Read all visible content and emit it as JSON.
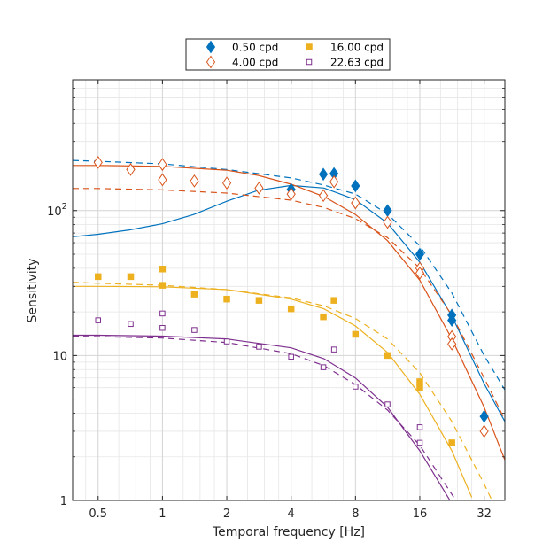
{
  "chart_data": {
    "type": "scatter",
    "title": "",
    "xlabel": "Temporal frequency [Hz]",
    "ylabel": "Sensitivity",
    "xscale": "log2",
    "yscale": "log10",
    "xlim": [
      0.38,
      40
    ],
    "ylim": [
      1,
      800
    ],
    "grid": true,
    "legend_position": "top-center",
    "x_ticks": [
      {
        "value": 0.5,
        "label": "0.5"
      },
      {
        "value": 1,
        "label": "1"
      },
      {
        "value": 2,
        "label": "2"
      },
      {
        "value": 4,
        "label": "4"
      },
      {
        "value": 8,
        "label": "8"
      },
      {
        "value": 16,
        "label": "16"
      },
      {
        "value": 32,
        "label": "32"
      }
    ],
    "y_ticks": [
      {
        "value": 1,
        "base": "1",
        "exp": ""
      },
      {
        "value": 10,
        "base": "10",
        "exp": ""
      },
      {
        "value": 100,
        "base": "10",
        "exp": "2"
      }
    ],
    "series": [
      {
        "name": "0.50 cpd",
        "color": "#0072BD",
        "marker": "diamond-filled",
        "points": [
          [
            4,
            140
          ],
          [
            5.66,
            178
          ],
          [
            6.35,
            180
          ],
          [
            8,
            148
          ],
          [
            11.3,
            100
          ],
          [
            16,
            50
          ],
          [
            22.6,
            19
          ],
          [
            22.6,
            17.5
          ],
          [
            32,
            3.8
          ]
        ],
        "fit_solid": [
          [
            0.38,
            66
          ],
          [
            0.5,
            68.6
          ],
          [
            0.7,
            73.5
          ],
          [
            1,
            81.2
          ],
          [
            1.4,
            94
          ],
          [
            2,
            116
          ],
          [
            2.8,
            138
          ],
          [
            4,
            149
          ],
          [
            5.7,
            143
          ],
          [
            8,
            119
          ],
          [
            11.3,
            82
          ],
          [
            16,
            44
          ],
          [
            22.6,
            18.7
          ],
          [
            32,
            6.4
          ],
          [
            40,
            3.5
          ]
        ],
        "fit_dashed": [
          [
            0.38,
            222
          ],
          [
            0.5,
            219
          ],
          [
            1,
            210
          ],
          [
            2,
            192
          ],
          [
            4,
            168
          ],
          [
            5.7,
            150
          ],
          [
            8,
            130
          ],
          [
            11.3,
            95
          ],
          [
            16,
            57
          ],
          [
            22.6,
            27
          ],
          [
            32,
            10
          ],
          [
            40,
            5.8
          ]
        ]
      },
      {
        "name": "4.00 cpd",
        "color": "#D95319",
        "marker": "diamond-open",
        "points": [
          [
            0.5,
            215
          ],
          [
            0.71,
            192
          ],
          [
            1,
            208
          ],
          [
            1,
            163
          ],
          [
            1.41,
            160
          ],
          [
            2,
            155
          ],
          [
            2.83,
            143
          ],
          [
            4,
            130
          ],
          [
            5.66,
            127
          ],
          [
            6.35,
            158
          ],
          [
            8,
            113
          ],
          [
            11.3,
            83
          ],
          [
            16,
            40
          ],
          [
            16,
            37
          ],
          [
            22.6,
            13.5
          ],
          [
            22.6,
            12
          ],
          [
            32,
            3
          ]
        ],
        "fit_solid": [
          [
            0.38,
            205
          ],
          [
            0.5,
            205
          ],
          [
            1,
            202
          ],
          [
            2,
            190
          ],
          [
            2.8,
            175
          ],
          [
            4,
            152
          ],
          [
            5.7,
            125
          ],
          [
            8,
            94
          ],
          [
            11.3,
            62
          ],
          [
            16,
            33
          ],
          [
            22.6,
            13
          ],
          [
            32,
            4.4
          ],
          [
            40,
            1.9
          ]
        ],
        "fit_dashed": [
          [
            0.38,
            142
          ],
          [
            0.5,
            142
          ],
          [
            1,
            139
          ],
          [
            2,
            132
          ],
          [
            4,
            118
          ],
          [
            5.7,
            105
          ],
          [
            8,
            88
          ],
          [
            11.3,
            65
          ],
          [
            16,
            40
          ],
          [
            22.6,
            19
          ],
          [
            32,
            7
          ],
          [
            40,
            3.6
          ]
        ]
      },
      {
        "name": "16.00 cpd",
        "color": "#EDB120",
        "marker": "square-filled",
        "points": [
          [
            0.5,
            35
          ],
          [
            0.71,
            35
          ],
          [
            1,
            39.5
          ],
          [
            1,
            30.5
          ],
          [
            1.41,
            26.5
          ],
          [
            2,
            24.5
          ],
          [
            2.83,
            24
          ],
          [
            4,
            21
          ],
          [
            5.66,
            18.5
          ],
          [
            6.35,
            24
          ],
          [
            8,
            14
          ],
          [
            11.3,
            10
          ],
          [
            16,
            6.6
          ],
          [
            16,
            6
          ],
          [
            22.6,
            2.5
          ]
        ],
        "fit_solid": [
          [
            0.38,
            30
          ],
          [
            0.5,
            30
          ],
          [
            1,
            29.8
          ],
          [
            2,
            28.5
          ],
          [
            4,
            24.5
          ],
          [
            5.7,
            21
          ],
          [
            8,
            16
          ],
          [
            11.3,
            10.5
          ],
          [
            16,
            5.4
          ],
          [
            22.6,
            2.2
          ],
          [
            28,
            1.05
          ]
        ],
        "fit_dashed": [
          [
            0.38,
            32
          ],
          [
            0.5,
            31.5
          ],
          [
            1,
            30.5
          ],
          [
            2,
            28.5
          ],
          [
            4,
            25
          ],
          [
            5.7,
            22
          ],
          [
            8,
            18
          ],
          [
            11.3,
            13
          ],
          [
            16,
            7.6
          ],
          [
            22.6,
            3.5
          ],
          [
            32,
            1.3
          ],
          [
            36,
            0.9
          ]
        ]
      },
      {
        "name": "22.63 cpd",
        "color": "#7E2F8E",
        "marker": "square-open",
        "points": [
          [
            0.5,
            17.5
          ],
          [
            0.71,
            16.5
          ],
          [
            1,
            19.5
          ],
          [
            1,
            15.5
          ],
          [
            1.41,
            15
          ],
          [
            2,
            12.5
          ],
          [
            2.83,
            11.5
          ],
          [
            4,
            9.8
          ],
          [
            5.66,
            8.3
          ],
          [
            6.35,
            11
          ],
          [
            8,
            6.1
          ],
          [
            11.3,
            4.6
          ],
          [
            16,
            3.2
          ],
          [
            16,
            2.5
          ]
        ],
        "fit_solid": [
          [
            0.38,
            13.8
          ],
          [
            0.5,
            13.8
          ],
          [
            1,
            13.6
          ],
          [
            2,
            13
          ],
          [
            4,
            11.3
          ],
          [
            5.7,
            9.5
          ],
          [
            8,
            7
          ],
          [
            11.3,
            4.4
          ],
          [
            16,
            2.2
          ],
          [
            22.6,
            0.95
          ],
          [
            24,
            0.8
          ]
        ],
        "fit_dashed": [
          [
            0.38,
            13.6
          ],
          [
            0.5,
            13.5
          ],
          [
            1,
            13.2
          ],
          [
            2,
            12.3
          ],
          [
            4,
            10.3
          ],
          [
            5.7,
            8.5
          ],
          [
            8,
            6.3
          ],
          [
            11.3,
            4.2
          ],
          [
            16,
            2.4
          ],
          [
            22.6,
            1.1
          ],
          [
            26,
            0.8
          ]
        ]
      }
    ]
  }
}
